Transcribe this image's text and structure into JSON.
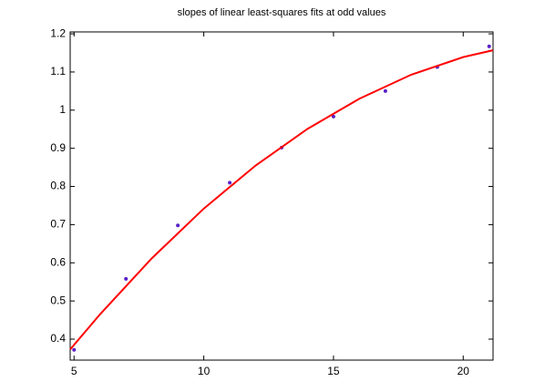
{
  "chart_data": {
    "type": "scatter",
    "title": "slopes of linear least-squares fits at odd values",
    "xlim": [
      4.85,
      21.15
    ],
    "xticks": [
      5,
      10,
      15,
      20
    ],
    "ylim": [
      0.345,
      1.205
    ],
    "yticks": [
      0.4,
      0.5,
      0.6,
      0.7,
      0.8,
      0.9,
      1,
      1.1,
      1.2
    ],
    "grid": false,
    "box": true,
    "series": [
      {
        "type": "scatter",
        "color": "#5a20c8",
        "x": [
          5,
          7,
          9,
          11,
          13,
          15,
          17,
          19,
          21
        ],
        "values": [
          0.372,
          0.558,
          0.698,
          0.81,
          0.902,
          0.983,
          1.05,
          1.113,
          1.167
        ]
      },
      {
        "type": "line",
        "color": "#ff0000",
        "x": [
          4.85,
          6,
          8,
          10,
          12,
          14,
          16,
          18,
          20,
          21.15
        ],
        "values": [
          0.373,
          0.465,
          0.612,
          0.742,
          0.855,
          0.951,
          1.03,
          1.093,
          1.139,
          1.157
        ]
      }
    ]
  }
}
